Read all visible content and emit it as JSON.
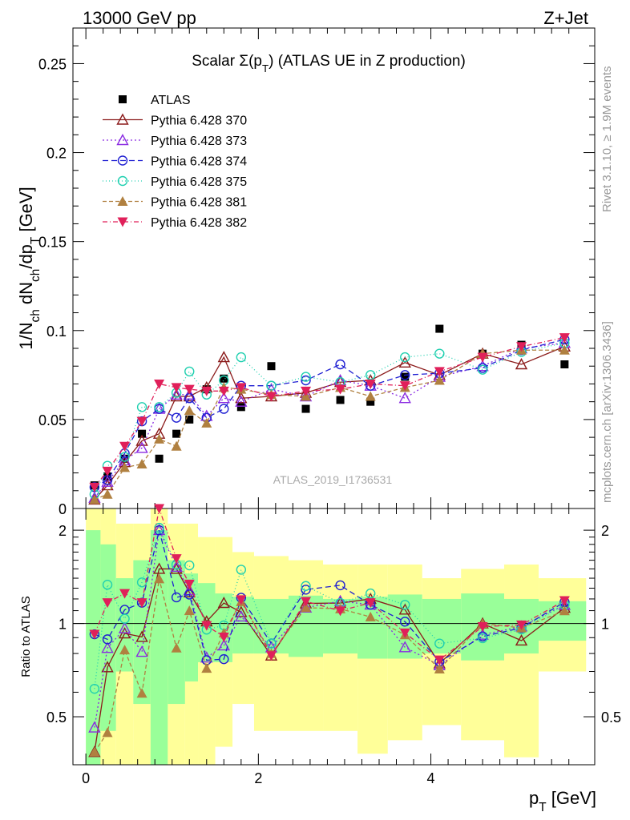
{
  "header": {
    "left": "13000 GeV pp",
    "right": "Z+Jet"
  },
  "side": {
    "rivet": "Rivet 3.1.10, ≥ 1.9M events",
    "mcplots": "mcplots.cern.ch [arXiv:1306.3436]"
  },
  "plot_title": "Scalar Σ(p_T) (ATLAS UE in Z production)",
  "watermark": "ATLAS_2019_I1736531",
  "ylabel": "1/N_ch dN_ch/dp_T [GeV]",
  "ratio_ylabel": "Ratio to ATLAS",
  "xlabel": "p_T [GeV]",
  "chart_data": {
    "type": "line",
    "title": "Scalar Σ(p_T) (ATLAS UE in Z production)",
    "x": [
      0.1,
      0.25,
      0.45,
      0.65,
      0.85,
      1.05,
      1.2,
      1.4,
      1.6,
      1.8,
      2.15,
      2.55,
      2.95,
      3.3,
      3.7,
      4.1,
      4.6,
      5.05,
      5.55
    ],
    "xlim": [
      -0.15,
      5.9
    ],
    "ylim": [
      0,
      0.27
    ],
    "ratio_ylim": [
      0.35,
      2.35
    ],
    "xticks": [
      "0",
      "2",
      "4"
    ],
    "yticks": [
      "0",
      "0.05",
      "0.1",
      "0.15",
      "0.2",
      "0.25"
    ],
    "ratio_yticks": [
      "0.5",
      "1",
      "2"
    ],
    "legend": "top-left",
    "series": [
      {
        "name": "ATLAS",
        "color": "#000000",
        "dash": "",
        "marker": "square",
        "values": [
          0.013,
          0.018,
          0.028,
          0.042,
          0.028,
          0.042,
          0.05,
          0.067,
          0.073,
          0.057,
          0.08,
          0.056,
          0.061,
          0.06,
          0.074,
          0.101,
          0.087,
          0.092,
          0.081
        ]
      },
      {
        "name": "Pythia 6.428 370",
        "color": "#8b1a1a",
        "dash": "",
        "marker": "triangle-open",
        "values": [
          0.005,
          0.013,
          0.026,
          0.038,
          0.042,
          0.063,
          0.063,
          0.068,
          0.085,
          0.062,
          0.063,
          0.065,
          0.071,
          0.072,
          0.082,
          0.075,
          0.087,
          0.081,
          0.091
        ]
      },
      {
        "name": "Pythia 6.428 373",
        "color": "#8a2be2",
        "dash": "2,3",
        "marker": "triangle-open",
        "values": [
          0.006,
          0.015,
          0.027,
          0.034,
          0.056,
          0.064,
          0.064,
          0.052,
          0.062,
          0.06,
          0.067,
          0.063,
          0.072,
          0.069,
          0.062,
          0.074,
          0.08,
          0.09,
          0.093
        ]
      },
      {
        "name": "Pythia 6.428 374",
        "color": "#1f1fd2",
        "dash": "7,4",
        "marker": "circle-open",
        "values": [
          0.012,
          0.016,
          0.031,
          0.049,
          0.056,
          0.051,
          0.062,
          0.051,
          0.056,
          0.069,
          0.069,
          0.072,
          0.081,
          0.069,
          0.075,
          0.076,
          0.079,
          0.089,
          0.095
        ]
      },
      {
        "name": "Pythia 6.428 375",
        "color": "#20d0b0",
        "dash": "1,3",
        "marker": "circle-open",
        "values": [
          0.008,
          0.024,
          0.029,
          0.057,
          0.057,
          0.065,
          0.077,
          0.064,
          0.072,
          0.085,
          0.069,
          0.074,
          0.071,
          0.075,
          0.085,
          0.087,
          0.078,
          0.088,
          0.093
        ]
      },
      {
        "name": "Pythia 6.428 381",
        "color": "#b08040",
        "dash": "5,3",
        "marker": "triangle-filled",
        "values": [
          0.005,
          0.008,
          0.023,
          0.025,
          0.039,
          0.035,
          0.055,
          0.048,
          0.068,
          0.067,
          0.064,
          0.063,
          0.068,
          0.063,
          0.068,
          0.072,
          0.087,
          0.089,
          0.089
        ]
      },
      {
        "name": "Pythia 6.428 382",
        "color": "#e0205a",
        "dash": "6,3,1,3",
        "marker": "triangledown-filled",
        "values": [
          0.012,
          0.021,
          0.035,
          0.049,
          0.07,
          0.068,
          0.067,
          0.066,
          0.066,
          0.068,
          0.063,
          0.066,
          0.067,
          0.07,
          0.069,
          0.077,
          0.085,
          0.091,
          0.096
        ]
      }
    ],
    "ratio_bands": {
      "edges": [
        0.0,
        0.17,
        0.35,
        0.55,
        0.75,
        0.95,
        1.15,
        1.3,
        1.5,
        1.7,
        1.95,
        2.35,
        2.75,
        3.15,
        3.5,
        3.9,
        4.35,
        4.85,
        5.25,
        5.8
      ],
      "green_lo": [
        0.35,
        0.45,
        0.7,
        0.55,
        0.35,
        0.55,
        0.65,
        0.75,
        0.75,
        0.8,
        0.8,
        0.78,
        0.8,
        0.77,
        0.77,
        0.8,
        0.76,
        0.8,
        0.88
      ],
      "green_hi": [
        2.0,
        1.8,
        1.4,
        1.6,
        2.0,
        1.6,
        1.45,
        1.35,
        1.25,
        1.22,
        1.2,
        1.23,
        1.2,
        1.22,
        1.24,
        1.2,
        1.25,
        1.2,
        1.18
      ],
      "yellow_lo": [
        0.35,
        0.35,
        0.35,
        0.35,
        0.35,
        0.35,
        0.35,
        0.35,
        0.4,
        0.55,
        0.45,
        0.45,
        0.45,
        0.38,
        0.42,
        0.47,
        0.42,
        0.37,
        0.7
      ],
      "yellow_hi": [
        2.35,
        2.35,
        2.1,
        2.1,
        2.35,
        2.1,
        2.1,
        1.9,
        1.9,
        1.7,
        1.65,
        1.6,
        1.55,
        1.55,
        1.55,
        1.4,
        1.5,
        1.55,
        1.4
      ]
    }
  }
}
